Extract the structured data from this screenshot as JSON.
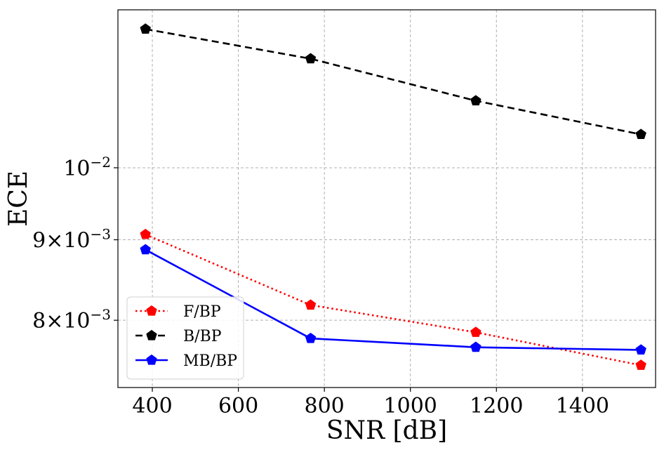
{
  "chart_data": {
    "type": "line",
    "xlabel": "SNR [dB]",
    "ylabel": "ECE",
    "x": [
      384,
      768,
      1152,
      1536
    ],
    "xlim": [
      320,
      1570
    ],
    "xticks": [
      400,
      600,
      800,
      1000,
      1200,
      1400
    ],
    "yscale": "log",
    "ylim": [
      0.00725,
      0.0126
    ],
    "yticks": [
      {
        "value": 0.008,
        "mantissa": "8",
        "times": "×",
        "base": "10",
        "exp": "−3"
      },
      {
        "value": 0.009,
        "mantissa": "9",
        "times": "×",
        "base": "10",
        "exp": "−3"
      },
      {
        "value": 0.01,
        "mantissa": "",
        "times": "",
        "base": "10",
        "exp": "−2"
      }
    ],
    "grid": true,
    "legend_position": "lower-left",
    "series": [
      {
        "name": "F/BP",
        "values": [
          0.00907,
          0.00818,
          0.00786,
          0.00749
        ],
        "color": "#ff0000",
        "style": "dotted",
        "marker": "pentagon"
      },
      {
        "name": "B/BP",
        "values": [
          0.01225,
          0.01173,
          0.01103,
          0.0105
        ],
        "color": "#000000",
        "style": "dashed",
        "marker": "pentagon"
      },
      {
        "name": "MB/BP",
        "values": [
          0.00887,
          0.00779,
          0.00769,
          0.00766
        ],
        "color": "#0000ff",
        "style": "solid",
        "marker": "pentagon"
      }
    ]
  }
}
